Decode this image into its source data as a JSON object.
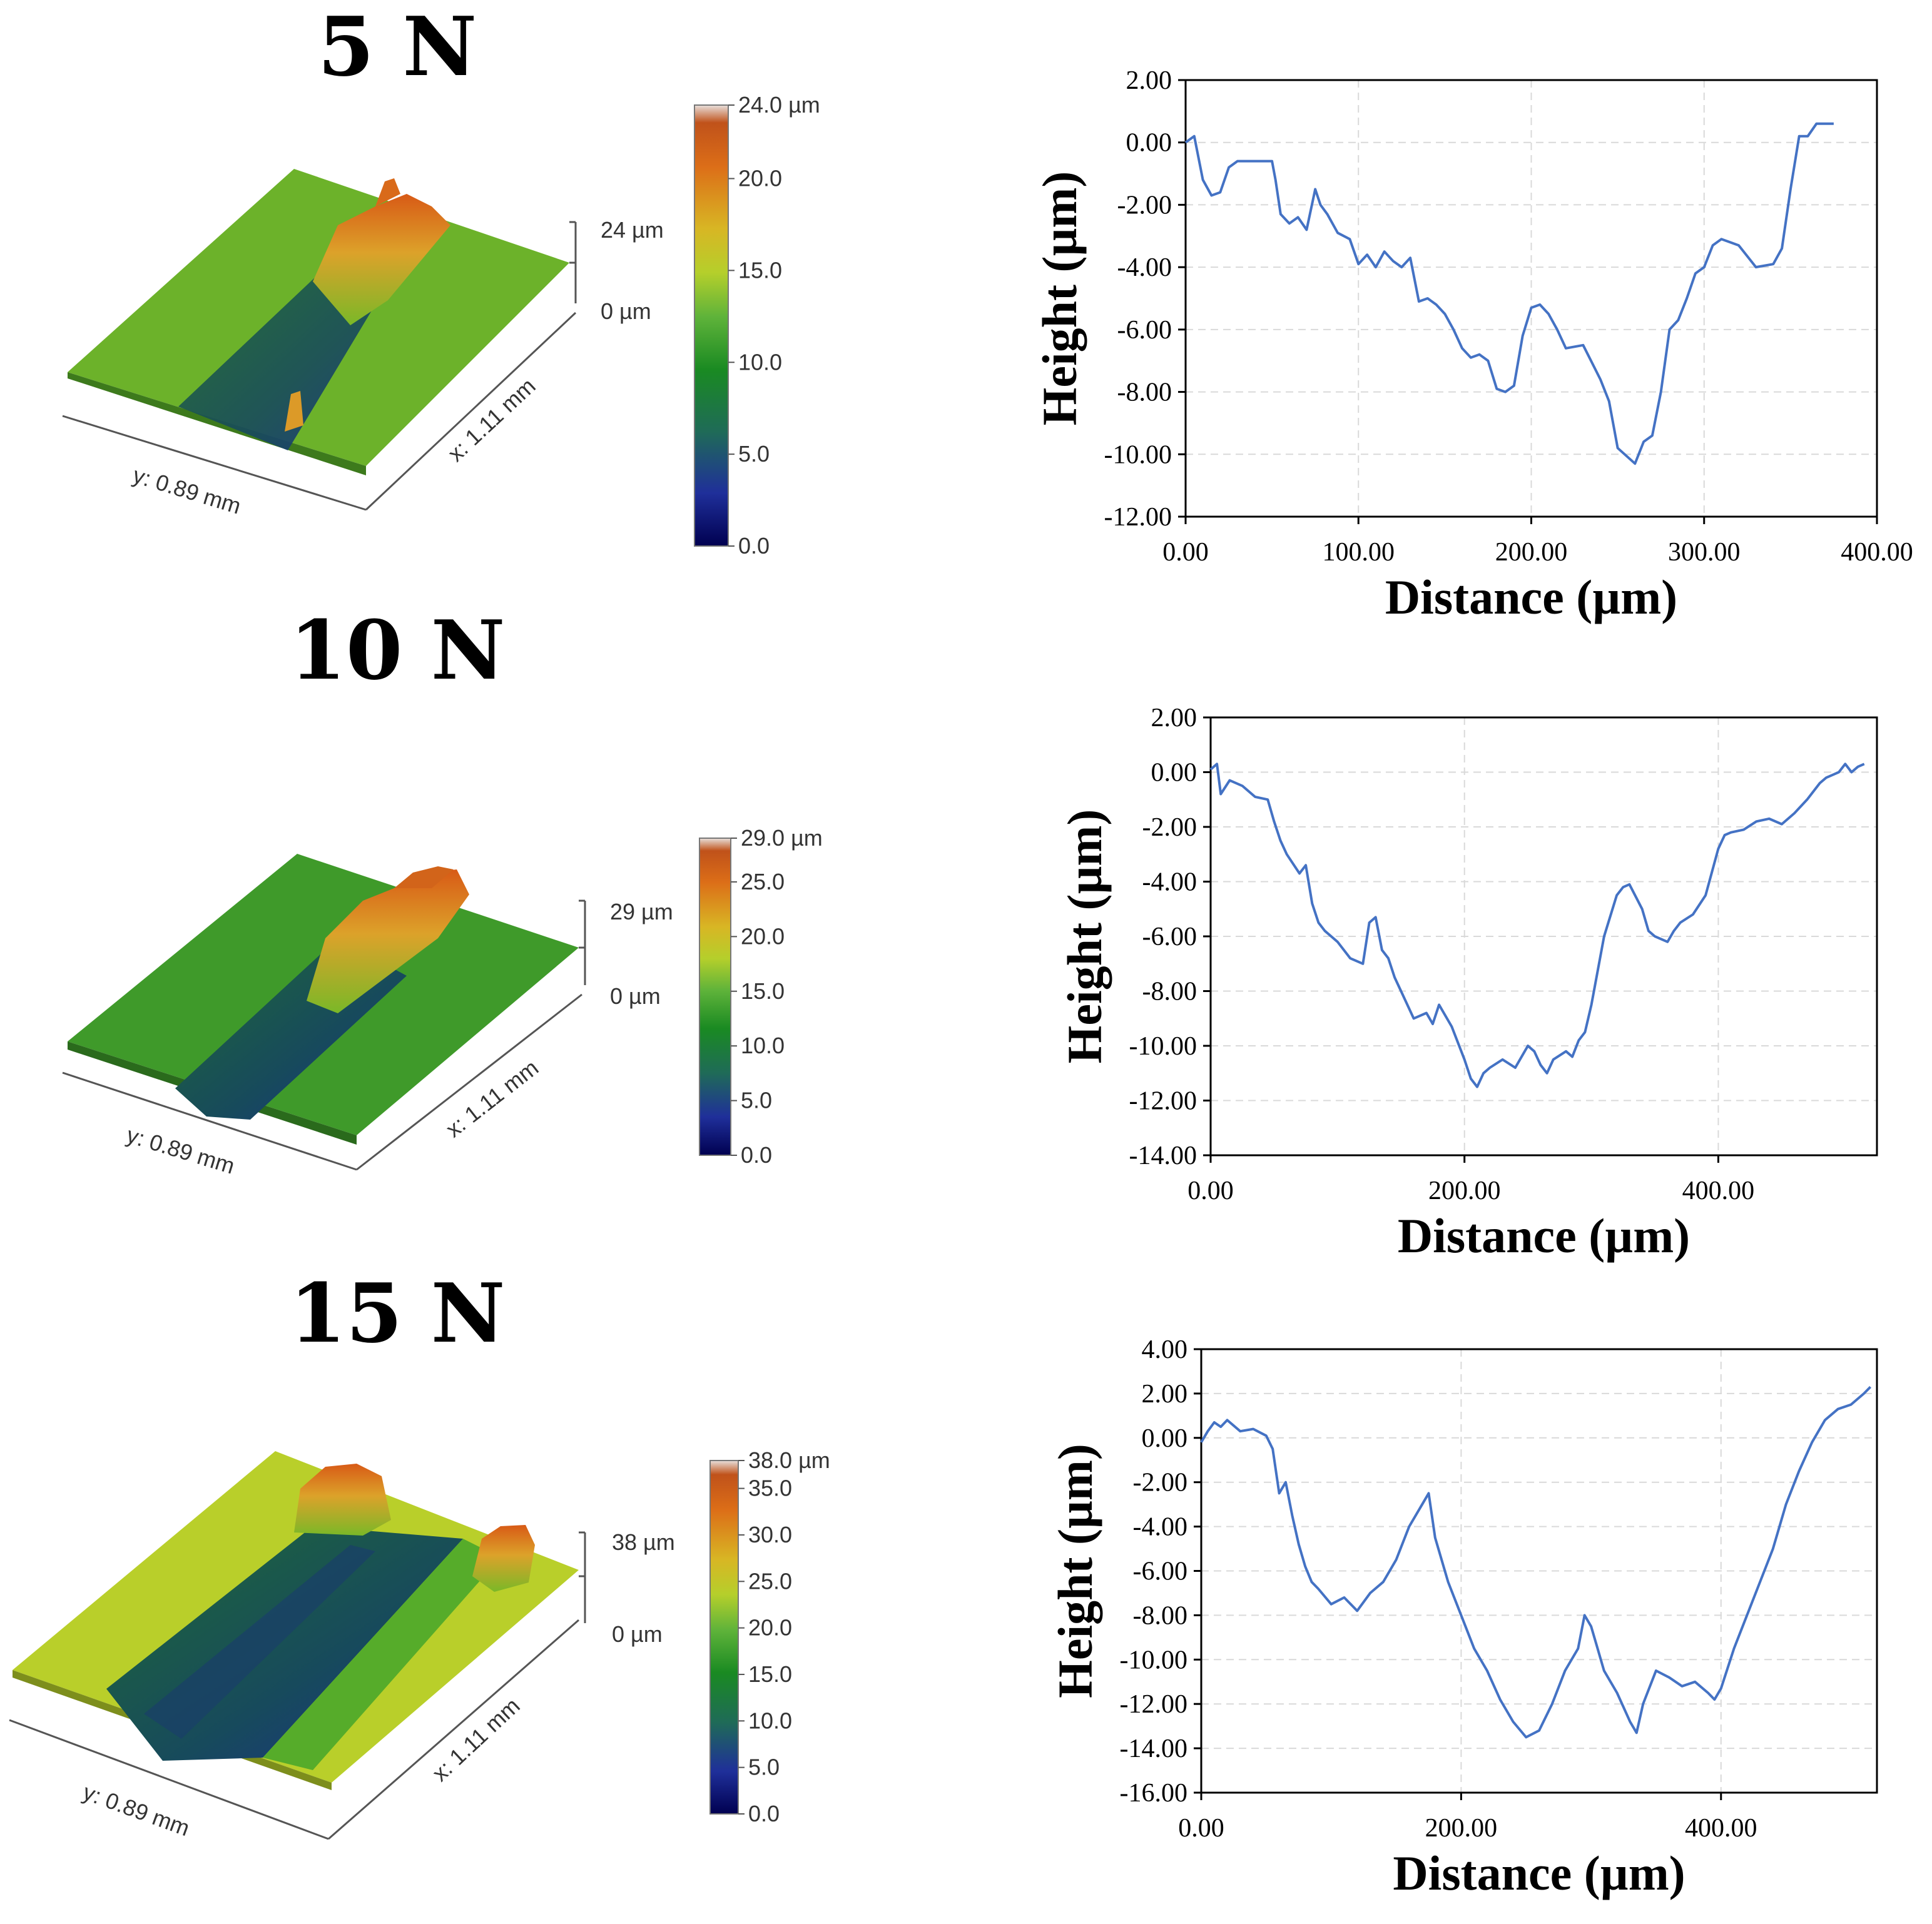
{
  "figure": {
    "rows": [
      {
        "force_label": "5 N",
        "surface": {
          "height_label": "24 µm",
          "zero_label": "0 µm",
          "y_label": "y: 0.89 mm",
          "x_label": "x: 1.11 mm",
          "colorbar_ticks": [
            "24.0 µm",
            "20.0",
            "15.0",
            "10.0",
            "5.0",
            "0.0"
          ],
          "colorbar_values": [
            24,
            20,
            15,
            10,
            5,
            0
          ],
          "colorbar_max": 24,
          "background_color": "#6cb22a"
        }
      },
      {
        "force_label": "10 N",
        "surface": {
          "height_label": "29 µm",
          "zero_label": "0 µm",
          "y_label": "y: 0.89 mm",
          "x_label": "x: 1.11 mm",
          "colorbar_ticks": [
            "29.0 µm",
            "25.0",
            "20.0",
            "15.0",
            "10.0",
            "5.0",
            "0.0"
          ],
          "colorbar_values": [
            29,
            25,
            20,
            15,
            10,
            5,
            0
          ],
          "colorbar_max": 29,
          "background_color": "#3f9a2a"
        }
      },
      {
        "force_label": "15 N",
        "surface": {
          "height_label": "38 µm",
          "zero_label": "0 µm",
          "y_label": "y: 0.89 mm",
          "x_label": "x: 1.11 mm",
          "colorbar_ticks": [
            "38.0 µm",
            "35.0",
            "30.0",
            "25.0",
            "20.0",
            "15.0",
            "10.0",
            "5.0",
            "0.0"
          ],
          "colorbar_values": [
            38,
            35,
            30,
            25,
            20,
            15,
            10,
            5,
            0
          ],
          "colorbar_max": 38,
          "background_color": "#b9cf2a"
        }
      }
    ],
    "colors": {
      "line": "#4472c4",
      "grid": "#d9d9d9",
      "axis": "#000000"
    }
  },
  "chart_data": [
    {
      "type": "line",
      "title": "5 N",
      "xlabel": "Distance (µm)",
      "ylabel": "Height (µm)",
      "xlim": [
        0,
        400
      ],
      "ylim": [
        -12,
        2
      ],
      "x_ticks": [
        0,
        100,
        200,
        300,
        400
      ],
      "y_ticks": [
        2,
        0,
        -2,
        -4,
        -6,
        -8,
        -10,
        -12
      ],
      "x_tick_labels": [
        "0.00",
        "100.00",
        "200.00",
        "300.00",
        "400.00"
      ],
      "y_tick_labels": [
        "2.00",
        "0.00",
        "-2.00",
        "-4.00",
        "-6.00",
        "-8.00",
        "-10.00",
        "-12.00"
      ],
      "grid": true,
      "series": [
        {
          "name": "profile",
          "x": [
            0,
            5,
            10,
            15,
            20,
            25,
            30,
            40,
            50,
            52,
            55,
            60,
            65,
            70,
            75,
            78,
            82,
            88,
            95,
            100,
            105,
            110,
            115,
            120,
            125,
            130,
            135,
            140,
            145,
            150,
            155,
            160,
            165,
            170,
            175,
            180,
            185,
            190,
            195,
            200,
            205,
            210,
            215,
            220,
            230,
            240,
            245,
            250,
            260,
            265,
            270,
            275,
            280,
            285,
            290,
            295,
            300,
            305,
            310,
            315,
            320,
            330,
            340,
            345,
            350,
            355,
            360,
            365,
            370,
            375
          ],
          "y": [
            0.0,
            0.2,
            -1.2,
            -1.7,
            -1.6,
            -0.8,
            -0.6,
            -0.6,
            -0.6,
            -1.2,
            -2.3,
            -2.6,
            -2.4,
            -2.8,
            -1.5,
            -2.0,
            -2.3,
            -2.9,
            -3.1,
            -3.9,
            -3.6,
            -4.0,
            -3.5,
            -3.8,
            -4.0,
            -3.7,
            -5.1,
            -5.0,
            -5.2,
            -5.5,
            -6.0,
            -6.6,
            -6.9,
            -6.8,
            -7.0,
            -7.9,
            -8.0,
            -7.8,
            -6.2,
            -5.3,
            -5.2,
            -5.5,
            -6.0,
            -6.6,
            -6.5,
            -7.6,
            -8.3,
            -9.8,
            -10.3,
            -9.6,
            -9.4,
            -8.0,
            -6.0,
            -5.7,
            -5.0,
            -4.2,
            -4.0,
            -3.3,
            -3.1,
            -3.2,
            -3.3,
            -4.0,
            -3.9,
            -3.4,
            -1.5,
            0.2,
            0.2,
            0.6,
            0.6,
            0.6
          ]
        }
      ]
    },
    {
      "type": "line",
      "title": "10 N",
      "xlabel": "Distance (µm)",
      "ylabel": "Height (µm)",
      "xlim": [
        0,
        525
      ],
      "ylim": [
        -14,
        2
      ],
      "x_ticks": [
        0,
        200,
        400
      ],
      "y_ticks": [
        2,
        0,
        -2,
        -4,
        -6,
        -8,
        -10,
        -12,
        -14
      ],
      "x_tick_labels": [
        "0.00",
        "200.00",
        "400.00"
      ],
      "y_tick_labels": [
        "2.00",
        "0.00",
        "-2.00",
        "-4.00",
        "-6.00",
        "-8.00",
        "-10.00",
        "-12.00",
        "-14.00"
      ],
      "grid": true,
      "series": [
        {
          "name": "profile",
          "x": [
            0,
            5,
            8,
            15,
            25,
            35,
            45,
            50,
            55,
            60,
            70,
            75,
            80,
            85,
            90,
            95,
            100,
            110,
            120,
            125,
            130,
            135,
            140,
            145,
            150,
            160,
            170,
            175,
            180,
            190,
            200,
            205,
            210,
            215,
            220,
            230,
            240,
            250,
            255,
            260,
            265,
            270,
            280,
            285,
            290,
            295,
            300,
            310,
            320,
            325,
            330,
            340,
            345,
            350,
            360,
            365,
            370,
            380,
            390,
            400,
            405,
            410,
            420,
            430,
            440,
            450,
            460,
            470,
            480,
            485,
            490,
            495,
            500,
            505,
            510,
            515
          ],
          "y": [
            0.1,
            0.3,
            -0.8,
            -0.3,
            -0.5,
            -0.9,
            -1.0,
            -1.8,
            -2.5,
            -3.0,
            -3.7,
            -3.4,
            -4.8,
            -5.5,
            -5.8,
            -6.0,
            -6.2,
            -6.8,
            -7.0,
            -5.5,
            -5.3,
            -6.5,
            -6.8,
            -7.5,
            -8.0,
            -9.0,
            -8.8,
            -9.2,
            -8.5,
            -9.3,
            -10.5,
            -11.2,
            -11.5,
            -11.0,
            -10.8,
            -10.5,
            -10.8,
            -10.0,
            -10.2,
            -10.7,
            -11.0,
            -10.5,
            -10.2,
            -10.4,
            -9.8,
            -9.5,
            -8.5,
            -6.0,
            -4.5,
            -4.2,
            -4.1,
            -5.0,
            -5.8,
            -6.0,
            -6.2,
            -5.8,
            -5.5,
            -5.2,
            -4.5,
            -2.8,
            -2.3,
            -2.2,
            -2.1,
            -1.8,
            -1.7,
            -1.9,
            -1.5,
            -1.0,
            -0.4,
            -0.2,
            -0.1,
            0.0,
            0.3,
            0.0,
            0.2,
            0.3
          ]
        }
      ]
    },
    {
      "type": "line",
      "title": "15 N",
      "xlabel": "Distance (µm)",
      "ylabel": "Height (µm)",
      "xlim": [
        0,
        520
      ],
      "ylim": [
        -16,
        4
      ],
      "x_ticks": [
        0,
        200,
        400
      ],
      "y_ticks": [
        4,
        2,
        0,
        -2,
        -4,
        -6,
        -8,
        -10,
        -12,
        -14,
        -16
      ],
      "x_tick_labels": [
        "0.00",
        "200.00",
        "400.00"
      ],
      "y_tick_labels": [
        "4.00",
        "2.00",
        "0.00",
        "-2.00",
        "-4.00",
        "-6.00",
        "-8.00",
        "-10.00",
        "-12.00",
        "-14.00",
        "-16.00"
      ],
      "grid": true,
      "series": [
        {
          "name": "profile",
          "x": [
            0,
            5,
            10,
            15,
            20,
            30,
            40,
            50,
            55,
            60,
            65,
            70,
            75,
            80,
            85,
            90,
            100,
            110,
            120,
            130,
            140,
            150,
            160,
            170,
            175,
            180,
            190,
            200,
            210,
            220,
            230,
            240,
            250,
            260,
            270,
            280,
            290,
            295,
            300,
            305,
            310,
            320,
            330,
            335,
            340,
            350,
            360,
            370,
            380,
            390,
            395,
            400,
            410,
            420,
            430,
            440,
            450,
            460,
            470,
            480,
            490,
            500,
            510,
            515
          ],
          "y": [
            -0.2,
            0.3,
            0.7,
            0.5,
            0.8,
            0.3,
            0.4,
            0.1,
            -0.5,
            -2.5,
            -2.0,
            -3.5,
            -4.8,
            -5.8,
            -6.5,
            -6.8,
            -7.5,
            -7.2,
            -7.8,
            -7.0,
            -6.5,
            -5.5,
            -4.0,
            -3.0,
            -2.5,
            -4.5,
            -6.5,
            -8.0,
            -9.5,
            -10.5,
            -11.8,
            -12.8,
            -13.5,
            -13.2,
            -12.0,
            -10.5,
            -9.5,
            -8.0,
            -8.5,
            -9.5,
            -10.5,
            -11.5,
            -12.8,
            -13.3,
            -12.0,
            -10.5,
            -10.8,
            -11.2,
            -11.0,
            -11.5,
            -11.8,
            -11.3,
            -9.5,
            -8.0,
            -6.5,
            -5.0,
            -3.0,
            -1.5,
            -0.2,
            0.8,
            1.3,
            1.5,
            2.0,
            2.3
          ]
        }
      ]
    }
  ]
}
